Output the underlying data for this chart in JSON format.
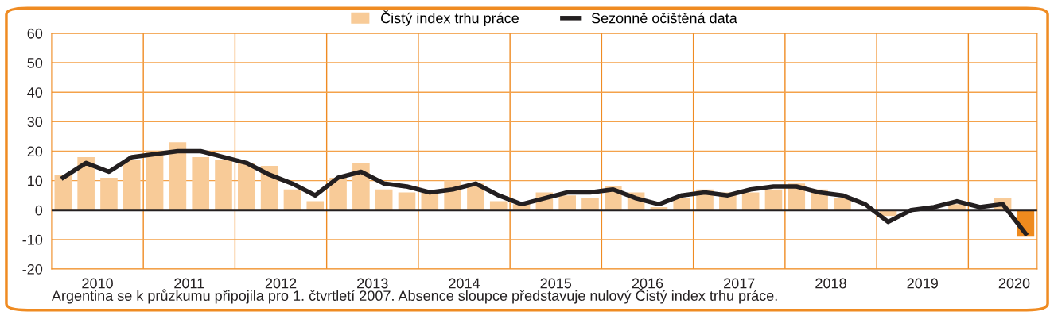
{
  "chart_data": {
    "type": "bar",
    "x": [
      2010.125,
      2010.375,
      2010.625,
      2010.875,
      2011.125,
      2011.375,
      2011.625,
      2011.875,
      2012.125,
      2012.375,
      2012.625,
      2012.875,
      2013.125,
      2013.375,
      2013.625,
      2013.875,
      2014.125,
      2014.375,
      2014.625,
      2014.875,
      2015.125,
      2015.375,
      2015.625,
      2015.875,
      2016.125,
      2016.375,
      2016.625,
      2016.875,
      2017.125,
      2017.375,
      2017.625,
      2017.875,
      2018.125,
      2018.375,
      2018.625,
      2018.875,
      2019.125,
      2019.375,
      2019.625,
      2019.875,
      2020.125,
      2020.375,
      2020.625
    ],
    "xlim": [
      2010,
      2020.75
    ],
    "xticks": [
      {
        "value": 2010.5,
        "label": "2010"
      },
      {
        "value": 2011,
        "label": null
      },
      {
        "value": 2011.5,
        "label": "2011"
      },
      {
        "value": 2012,
        "label": null
      },
      {
        "value": 2012.5,
        "label": "2012"
      },
      {
        "value": 2013,
        "label": null
      },
      {
        "value": 2013.5,
        "label": "2013"
      },
      {
        "value": 2014,
        "label": null
      },
      {
        "value": 2014.5,
        "label": "2014"
      },
      {
        "value": 2015,
        "label": null
      },
      {
        "value": 2015.5,
        "label": "2015"
      },
      {
        "value": 2016,
        "label": null
      },
      {
        "value": 2016.5,
        "label": "2016"
      },
      {
        "value": 2017,
        "label": null
      },
      {
        "value": 2017.5,
        "label": "2017"
      },
      {
        "value": 2018,
        "label": null
      },
      {
        "value": 2018.5,
        "label": "2018"
      },
      {
        "value": 2019,
        "label": null
      },
      {
        "value": 2019.5,
        "label": "2019"
      },
      {
        "value": 2020,
        "label": null
      },
      {
        "value": 2020.5,
        "label": "2020"
      }
    ],
    "series": [
      {
        "name": "Čistý index trhu práce",
        "color": "#f8cb98",
        "colors": [
          "#f8cb98",
          "#f8cb98",
          "#f8cb98",
          "#f8cb98",
          "#f8cb98",
          "#f8cb98",
          "#f8cb98",
          "#f8cb98",
          "#f8cb98",
          "#f8cb98",
          "#f8cb98",
          "#f8cb98",
          "#f8cb98",
          "#f8cb98",
          "#f8cb98",
          "#f8cb98",
          "#f8cb98",
          "#f8cb98",
          "#f8cb98",
          "#f8cb98",
          "#f8cb98",
          "#f8cb98",
          "#f8cb98",
          "#f8cb98",
          "#f8cb98",
          "#f8cb98",
          "#f8cb98",
          "#f8cb98",
          "#f8cb98",
          "#f8cb98",
          "#f8cb98",
          "#f8cb98",
          "#f8cb98",
          "#f8cb98",
          "#f8cb98",
          "#f8cb98",
          "#f8cb98",
          "#f8cb98",
          "#f8cb98",
          "#f8cb98",
          "#f8cb98",
          "#f8cb98",
          "#ee8a1e"
        ],
        "values": [
          12,
          18,
          11,
          17,
          20,
          23,
          18,
          17,
          16,
          15,
          7,
          3,
          11,
          16,
          7,
          6,
          6,
          10,
          9,
          3,
          2,
          6,
          5,
          4,
          8,
          6,
          1,
          4,
          7,
          6,
          6,
          7,
          9,
          7,
          4,
          null,
          -2,
          null,
          null,
          2,
          null,
          4,
          -9
        ]
      },
      {
        "name": "Sezonně očištěná data",
        "type": "line",
        "color": "#231f20",
        "values": [
          11,
          16,
          13,
          18,
          19,
          20,
          20,
          18,
          16,
          12,
          9,
          5,
          11,
          13,
          9,
          8,
          6,
          7,
          9,
          5,
          2,
          4,
          6,
          6,
          7,
          4,
          2,
          5,
          6,
          5,
          7,
          8,
          8,
          6,
          5,
          2,
          -4,
          0,
          1,
          3,
          1,
          2,
          -8
        ]
      }
    ],
    "ylim": [
      -20,
      60
    ],
    "yticks": [
      -20,
      -10,
      0,
      10,
      20,
      30,
      40,
      50,
      60
    ],
    "grid": true,
    "legend": "top",
    "ref_lines": [
      {
        "axis": "y",
        "value": 0,
        "color": "#231f20"
      }
    ],
    "annotations": [
      "Argentina se k průzkumu připojila pro 1. čtvrtletí 2007. Absence sloupce představuje nulový Čistý index trhu práce."
    ]
  }
}
